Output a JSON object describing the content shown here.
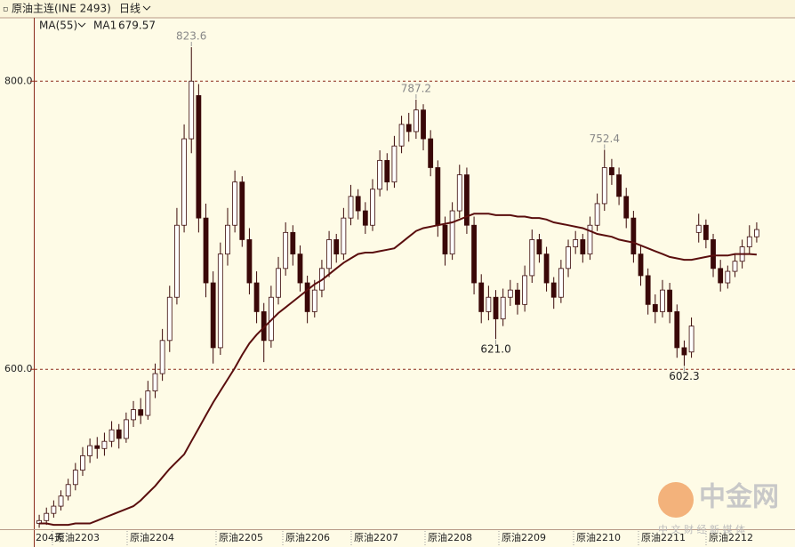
{
  "chart_data": {
    "type": "candlestick",
    "title": "原油主连(INE 2493)",
    "period": "日线",
    "indicator": "MA(55)",
    "ylim": [
      489,
      844
    ],
    "yticks": [
      {
        "value": 800,
        "label": "800.0"
      },
      {
        "value": 600,
        "label": "600.0"
      }
    ],
    "grid": true,
    "up_color": "#ffffff",
    "down_color": "#3a0808",
    "outline_color": "#3a0808",
    "x_labels": [
      "204天",
      "原油2203",
      "原油2204",
      "原油2205",
      "原油2206",
      "原油2207",
      "原油2208",
      "原油2209",
      "原油2210",
      "原油2211",
      "原油2212"
    ],
    "ohlc": [
      [
        493,
        499,
        490,
        495
      ],
      [
        495,
        504,
        492,
        500
      ],
      [
        500,
        509,
        497,
        505
      ],
      [
        505,
        516,
        502,
        512
      ],
      [
        512,
        524,
        509,
        520
      ],
      [
        520,
        535,
        516,
        530
      ],
      [
        530,
        546,
        526,
        540
      ],
      [
        540,
        552,
        535,
        547
      ],
      [
        547,
        553,
        538,
        545
      ],
      [
        545,
        556,
        540,
        550
      ],
      [
        550,
        564,
        546,
        558
      ],
      [
        558,
        562,
        545,
        552
      ],
      [
        552,
        570,
        549,
        565
      ],
      [
        565,
        578,
        560,
        572
      ],
      [
        572,
        580,
        562,
        568
      ],
      [
        568,
        592,
        565,
        585
      ],
      [
        585,
        604,
        580,
        597
      ],
      [
        597,
        628,
        592,
        620
      ],
      [
        620,
        658,
        612,
        650
      ],
      [
        650,
        712,
        645,
        700
      ],
      [
        700,
        770,
        695,
        760
      ],
      [
        760,
        823.6,
        750,
        800
      ],
      [
        790,
        798,
        695,
        705
      ],
      [
        705,
        715,
        650,
        660
      ],
      [
        660,
        668,
        604,
        615
      ],
      [
        615,
        688,
        610,
        680
      ],
      [
        680,
        712,
        672,
        700
      ],
      [
        700,
        738,
        695,
        730
      ],
      [
        730,
        734,
        685,
        690
      ],
      [
        690,
        698,
        652,
        660
      ],
      [
        660,
        668,
        632,
        640
      ],
      [
        640,
        646,
        605,
        620
      ],
      [
        620,
        658,
        615,
        650
      ],
      [
        650,
        678,
        645,
        670
      ],
      [
        670,
        702,
        665,
        695
      ],
      [
        695,
        700,
        672,
        680
      ],
      [
        680,
        686,
        654,
        660
      ],
      [
        660,
        665,
        632,
        640
      ],
      [
        640,
        662,
        636,
        655
      ],
      [
        655,
        676,
        650,
        670
      ],
      [
        670,
        696,
        664,
        690
      ],
      [
        690,
        694,
        674,
        680
      ],
      [
        680,
        712,
        676,
        705
      ],
      [
        705,
        728,
        700,
        720
      ],
      [
        720,
        725,
        704,
        710
      ],
      [
        710,
        716,
        694,
        700
      ],
      [
        700,
        732,
        696,
        725
      ],
      [
        725,
        752,
        720,
        745
      ],
      [
        745,
        750,
        724,
        730
      ],
      [
        730,
        762,
        726,
        755
      ],
      [
        755,
        776,
        750,
        770
      ],
      [
        770,
        778,
        758,
        765
      ],
      [
        765,
        787.2,
        760,
        780
      ],
      [
        780,
        784,
        752,
        760
      ],
      [
        760,
        766,
        734,
        740
      ],
      [
        740,
        745,
        692,
        700
      ],
      [
        700,
        706,
        672,
        680
      ],
      [
        680,
        716,
        676,
        710
      ],
      [
        710,
        742,
        705,
        735
      ],
      [
        735,
        740,
        694,
        700
      ],
      [
        700,
        706,
        652,
        660
      ],
      [
        660,
        666,
        632,
        640
      ],
      [
        640,
        658,
        634,
        650
      ],
      [
        650,
        655,
        621,
        635
      ],
      [
        635,
        656,
        630,
        650
      ],
      [
        650,
        662,
        644,
        655
      ],
      [
        655,
        660,
        638,
        645
      ],
      [
        645,
        672,
        640,
        665
      ],
      [
        665,
        697,
        660,
        690
      ],
      [
        690,
        694,
        674,
        680
      ],
      [
        680,
        685,
        654,
        660
      ],
      [
        660,
        664,
        642,
        650
      ],
      [
        650,
        676,
        646,
        670
      ],
      [
        670,
        690,
        664,
        685
      ],
      [
        685,
        696,
        680,
        690
      ],
      [
        690,
        694,
        674,
        680
      ],
      [
        680,
        706,
        676,
        700
      ],
      [
        700,
        722,
        696,
        715
      ],
      [
        715,
        752.4,
        710,
        740
      ],
      [
        740,
        746,
        728,
        735
      ],
      [
        735,
        740,
        714,
        720
      ],
      [
        720,
        726,
        698,
        705
      ],
      [
        705,
        710,
        674,
        680
      ],
      [
        680,
        686,
        658,
        665
      ],
      [
        665,
        670,
        638,
        645
      ],
      [
        645,
        652,
        632,
        640
      ],
      [
        640,
        662,
        636,
        655
      ],
      [
        655,
        660,
        632,
        640
      ],
      [
        640,
        645,
        608,
        615
      ],
      [
        615,
        620,
        602.3,
        610
      ],
      [
        612,
        636,
        608,
        630
      ],
      [
        695,
        708,
        688,
        700
      ],
      [
        700,
        704,
        684,
        690
      ],
      [
        690,
        694,
        664,
        670
      ],
      [
        670,
        676,
        654,
        660
      ],
      [
        660,
        672,
        656,
        668
      ],
      [
        668,
        680,
        664,
        675
      ],
      [
        675,
        690,
        670,
        685
      ],
      [
        685,
        700,
        680,
        692
      ],
      [
        692,
        702,
        688,
        697
      ]
    ],
    "ma": {
      "name": "MA1",
      "color": "#5a0e0e",
      "values": [
        493,
        493,
        492,
        492,
        492,
        493,
        493,
        493,
        495,
        497,
        499,
        501,
        503,
        505,
        509,
        514,
        519,
        525,
        531,
        536,
        541,
        550,
        559,
        568,
        577,
        585,
        593,
        601,
        610,
        618,
        624,
        629,
        634,
        639,
        643,
        647,
        651,
        655,
        659,
        662,
        666,
        670,
        674,
        677,
        680,
        681,
        681,
        682,
        683,
        684,
        688,
        692,
        696,
        698,
        699,
        700,
        701,
        702,
        704,
        706,
        708,
        708,
        708,
        707,
        707,
        707,
        706,
        706,
        705,
        705,
        704,
        702,
        701,
        700,
        699,
        698,
        696,
        694,
        693,
        692,
        690,
        689,
        688,
        686,
        684,
        682,
        680,
        678,
        677,
        676,
        676,
        677,
        678,
        679,
        679,
        679,
        680,
        680,
        680,
        679.57
      ]
    },
    "annotations": [
      {
        "value": 823.6,
        "label": "823.6"
      },
      {
        "value": 787.2,
        "label": "787.2"
      },
      {
        "value": 621,
        "label": "621.0"
      },
      {
        "value": 752.4,
        "label": "752.4"
      },
      {
        "value": 602.3,
        "label": "602.3"
      }
    ],
    "watermark": [
      "中金网",
      "中 文 财 经 新 媒 体"
    ]
  }
}
